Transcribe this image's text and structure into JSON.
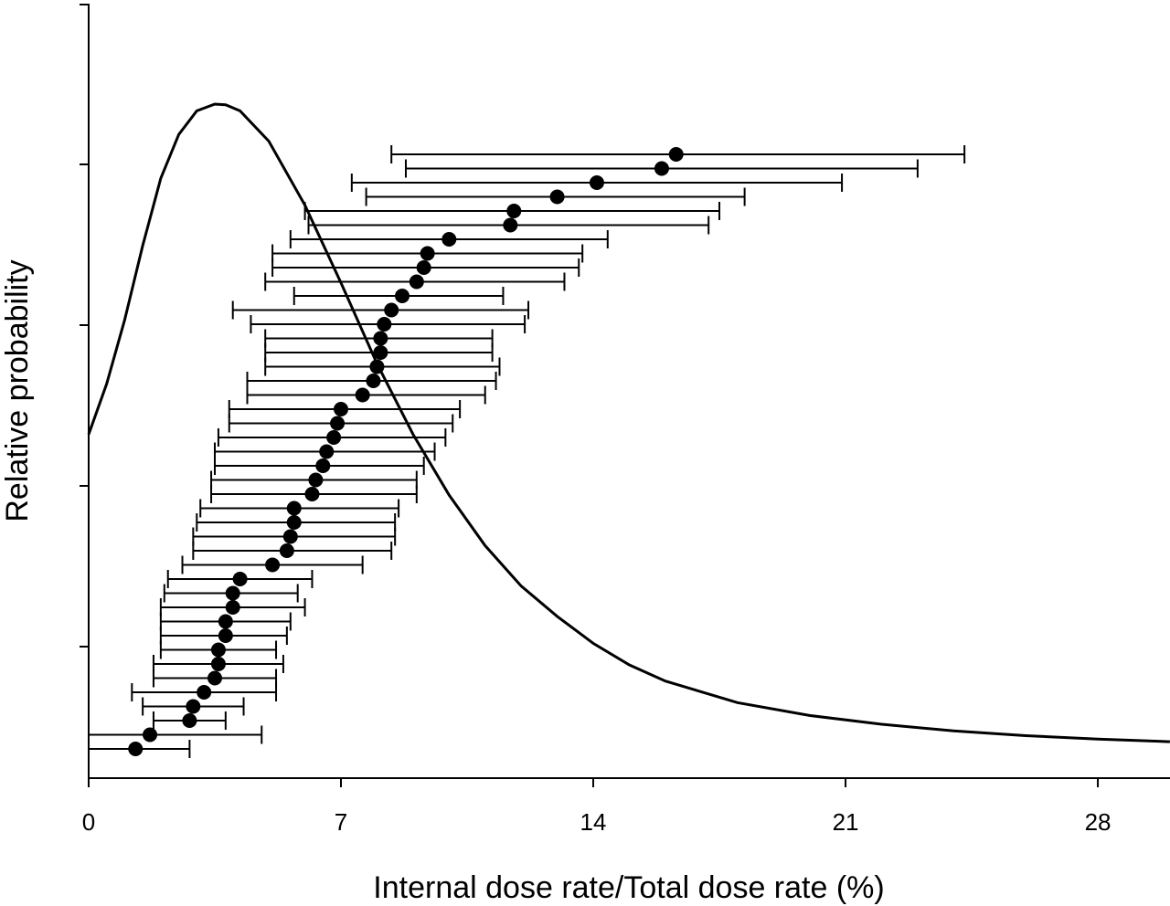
{
  "chart_data": {
    "type": "scatter",
    "xlabel": "Internal dose rate/Total dose rate (%)",
    "ylabel": "Relative probability",
    "xlim": [
      0,
      30
    ],
    "x_ticks": [
      "0",
      "7",
      "14",
      "21",
      "28"
    ],
    "x_tick_values": [
      0,
      7,
      14,
      21,
      28
    ],
    "y_tick_count": 4,
    "grid": false,
    "legend": "none",
    "points": [
      {
        "x": 1.3,
        "lo": 0.0,
        "hi": 2.8
      },
      {
        "x": 1.7,
        "lo": 0.0,
        "hi": 4.8
      },
      {
        "x": 2.8,
        "lo": 1.8,
        "hi": 3.8
      },
      {
        "x": 2.9,
        "lo": 1.5,
        "hi": 4.3
      },
      {
        "x": 3.2,
        "lo": 1.2,
        "hi": 5.2
      },
      {
        "x": 3.5,
        "lo": 1.8,
        "hi": 5.2
      },
      {
        "x": 3.6,
        "lo": 1.8,
        "hi": 5.4
      },
      {
        "x": 3.6,
        "lo": 2.0,
        "hi": 5.2
      },
      {
        "x": 3.8,
        "lo": 2.0,
        "hi": 5.5
      },
      {
        "x": 3.8,
        "lo": 2.0,
        "hi": 5.6
      },
      {
        "x": 4.0,
        "lo": 2.0,
        "hi": 6.0
      },
      {
        "x": 4.0,
        "lo": 2.1,
        "hi": 5.8
      },
      {
        "x": 4.2,
        "lo": 2.2,
        "hi": 6.2
      },
      {
        "x": 5.1,
        "lo": 2.6,
        "hi": 7.6
      },
      {
        "x": 5.5,
        "lo": 2.9,
        "hi": 8.4
      },
      {
        "x": 5.6,
        "lo": 2.9,
        "hi": 8.5
      },
      {
        "x": 5.7,
        "lo": 3.0,
        "hi": 8.5
      },
      {
        "x": 5.7,
        "lo": 3.1,
        "hi": 8.6
      },
      {
        "x": 6.2,
        "lo": 3.4,
        "hi": 9.1
      },
      {
        "x": 6.3,
        "lo": 3.4,
        "hi": 9.1
      },
      {
        "x": 6.5,
        "lo": 3.5,
        "hi": 9.3
      },
      {
        "x": 6.6,
        "lo": 3.5,
        "hi": 9.6
      },
      {
        "x": 6.8,
        "lo": 3.6,
        "hi": 9.9
      },
      {
        "x": 6.9,
        "lo": 3.9,
        "hi": 10.1
      },
      {
        "x": 7.0,
        "lo": 3.9,
        "hi": 10.3
      },
      {
        "x": 7.6,
        "lo": 4.4,
        "hi": 11.0
      },
      {
        "x": 7.9,
        "lo": 4.4,
        "hi": 11.3
      },
      {
        "x": 8.0,
        "lo": 4.9,
        "hi": 11.4
      },
      {
        "x": 8.1,
        "lo": 4.9,
        "hi": 11.2
      },
      {
        "x": 8.1,
        "lo": 4.9,
        "hi": 11.2
      },
      {
        "x": 8.2,
        "lo": 4.5,
        "hi": 12.1
      },
      {
        "x": 8.4,
        "lo": 4.0,
        "hi": 12.2
      },
      {
        "x": 8.7,
        "lo": 5.7,
        "hi": 11.5
      },
      {
        "x": 9.1,
        "lo": 4.9,
        "hi": 13.2
      },
      {
        "x": 9.3,
        "lo": 5.1,
        "hi": 13.6
      },
      {
        "x": 9.4,
        "lo": 5.1,
        "hi": 13.7
      },
      {
        "x": 10.0,
        "lo": 5.6,
        "hi": 14.4
      },
      {
        "x": 11.7,
        "lo": 6.1,
        "hi": 17.2
      },
      {
        "x": 11.8,
        "lo": 6.0,
        "hi": 17.5
      },
      {
        "x": 13.0,
        "lo": 7.7,
        "hi": 18.2
      },
      {
        "x": 14.1,
        "lo": 7.3,
        "hi": 20.9
      },
      {
        "x": 15.9,
        "lo": 8.8,
        "hi": 23.0
      },
      {
        "x": 16.3,
        "lo": 8.4,
        "hi": 24.3
      }
    ],
    "curve": {
      "description_type": "distribution",
      "x": [
        0,
        0.5,
        1,
        1.5,
        2,
        2.5,
        3,
        3.5,
        3.8,
        4.2,
        5,
        6,
        7,
        8,
        9,
        10,
        11,
        12,
        13,
        14,
        15,
        16,
        18,
        20,
        22,
        24,
        26,
        28,
        30
      ],
      "y": [
        0.51,
        0.585,
        0.68,
        0.79,
        0.89,
        0.955,
        0.99,
        1.0,
        0.999,
        0.99,
        0.945,
        0.85,
        0.735,
        0.615,
        0.51,
        0.42,
        0.345,
        0.285,
        0.24,
        0.2,
        0.168,
        0.144,
        0.112,
        0.093,
        0.08,
        0.07,
        0.063,
        0.058,
        0.054
      ]
    }
  }
}
